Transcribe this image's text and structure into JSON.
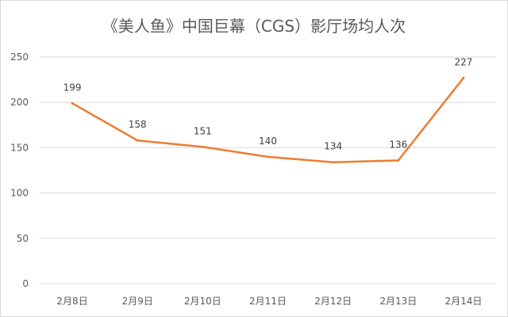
{
  "chart_data": {
    "type": "line",
    "title": "《美人鱼》中国巨幕（CGS）影厅场均人次",
    "categories": [
      "2月8日",
      "2月9日",
      "2月10日",
      "2月11日",
      "2月12日",
      "2月13日",
      "2月14日"
    ],
    "series": [
      {
        "values": [
          199,
          158,
          151,
          140,
          134,
          136,
          227
        ],
        "color": "#ed7d31"
      }
    ],
    "yticks": [
      0,
      50,
      100,
      150,
      200,
      250
    ],
    "ylim": [
      0,
      250
    ],
    "grid": true,
    "legend": "none"
  }
}
